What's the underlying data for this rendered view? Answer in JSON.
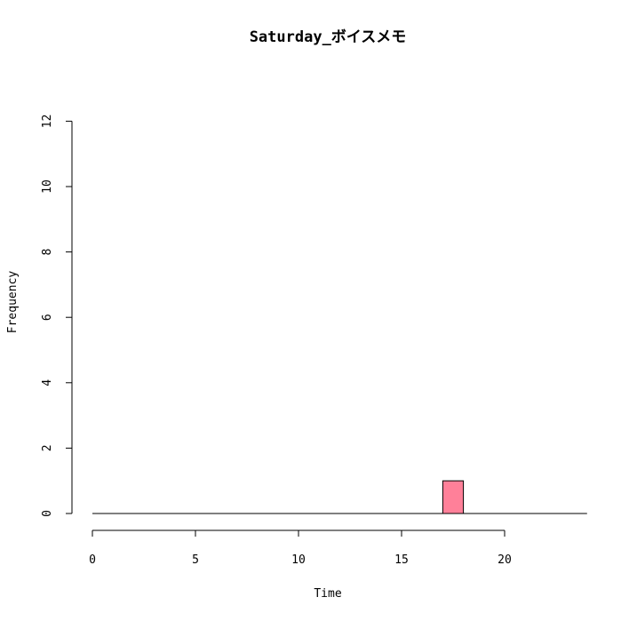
{
  "chart_data": {
    "type": "bar",
    "title": "Saturday_ボイスメモ",
    "xlabel": "Time",
    "ylabel": "Frequency",
    "xlim": [
      0,
      24
    ],
    "ylim": [
      0,
      12
    ],
    "x_ticks": [
      0,
      5,
      10,
      15,
      20
    ],
    "y_ticks": [
      0,
      2,
      4,
      6,
      8,
      10,
      12
    ],
    "bin_width": 1,
    "bins": [
      {
        "start": 0,
        "count": 0
      },
      {
        "start": 1,
        "count": 0
      },
      {
        "start": 2,
        "count": 0
      },
      {
        "start": 3,
        "count": 0
      },
      {
        "start": 4,
        "count": 0
      },
      {
        "start": 5,
        "count": 0
      },
      {
        "start": 6,
        "count": 0
      },
      {
        "start": 7,
        "count": 0
      },
      {
        "start": 8,
        "count": 0
      },
      {
        "start": 9,
        "count": 0
      },
      {
        "start": 10,
        "count": 0
      },
      {
        "start": 11,
        "count": 0
      },
      {
        "start": 12,
        "count": 0
      },
      {
        "start": 13,
        "count": 0
      },
      {
        "start": 14,
        "count": 0
      },
      {
        "start": 15,
        "count": 0
      },
      {
        "start": 16,
        "count": 0
      },
      {
        "start": 17,
        "count": 1
      },
      {
        "start": 18,
        "count": 0
      },
      {
        "start": 19,
        "count": 0
      },
      {
        "start": 20,
        "count": 0
      },
      {
        "start": 21,
        "count": 0
      },
      {
        "start": 22,
        "count": 0
      },
      {
        "start": 23,
        "count": 0
      }
    ],
    "bar_color": "#ff8099",
    "grid": false,
    "legend": "none"
  }
}
